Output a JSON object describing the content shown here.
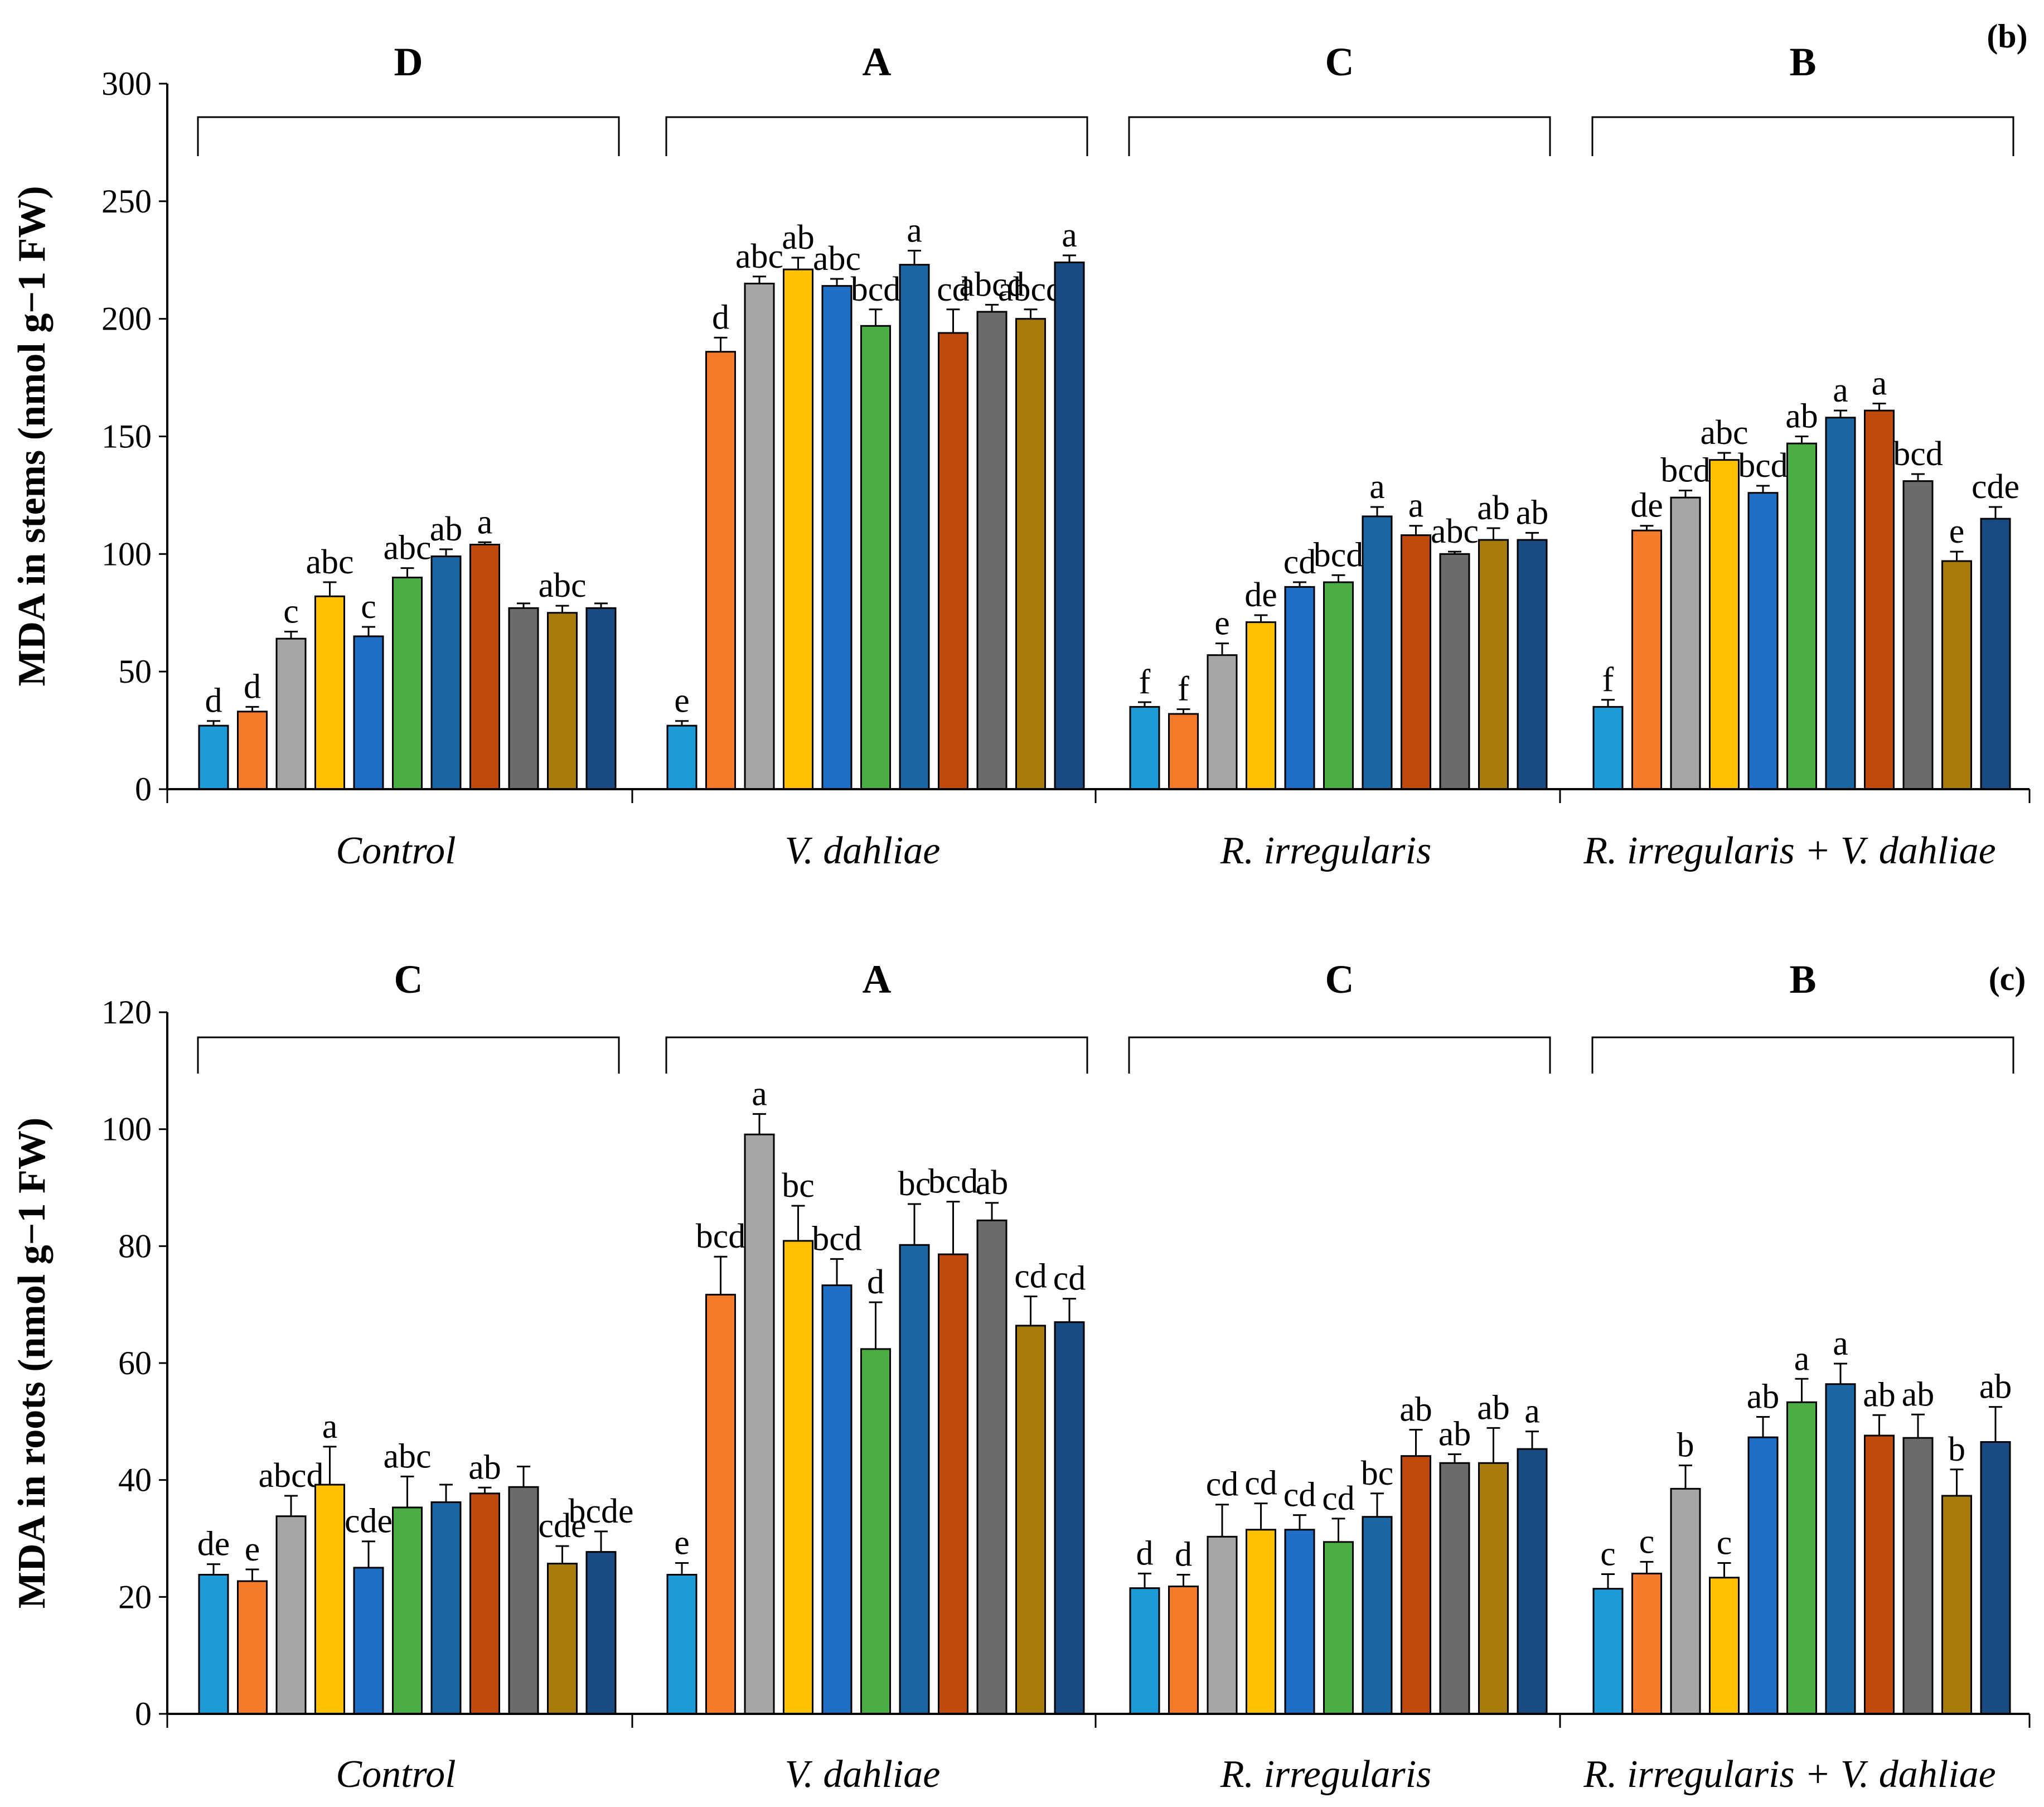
{
  "bar_colors": [
    "#1c9bd8",
    "#f57a2a",
    "#a6a6a6",
    "#ffc000",
    "#1f6fc6",
    "#4aae45",
    "#1a67a3",
    "#c04a0c",
    "#6b6b6b",
    "#a87c0c",
    "#1a4a82"
  ],
  "chart_data": [
    {
      "type": "bar",
      "panel_label": "(b)",
      "ylabel": "MDA in stems (nmol g−1 FW)",
      "ylim": [
        0,
        300
      ],
      "yticks": [
        0,
        50,
        100,
        150,
        200,
        250,
        300
      ],
      "categories": [
        "Control",
        "V. dahliae",
        "R. irregularis",
        "R. irregularis + V. dahliae"
      ],
      "group_letters": [
        "D",
        "A",
        "C",
        "B"
      ],
      "groups": [
        {
          "values": [
            27,
            33,
            64,
            82,
            65,
            90,
            99,
            104,
            77,
            75,
            77
          ],
          "errors": [
            2,
            2,
            3,
            6,
            4,
            4,
            3,
            1,
            2,
            3,
            2
          ],
          "letters": [
            "d",
            "d",
            "c",
            "abc",
            "c",
            "abc",
            "ab",
            "a",
            "",
            "abc",
            ""
          ]
        },
        {
          "values": [
            27,
            186,
            215,
            221,
            214,
            197,
            223,
            194,
            203,
            200,
            224
          ],
          "errors": [
            2,
            6,
            3,
            5,
            3,
            7,
            6,
            10,
            3,
            4,
            3
          ],
          "letters": [
            "e",
            "d",
            "abc",
            "ab",
            "abc",
            "bcd",
            "a",
            "cd",
            "abcd",
            "abcd",
            "a"
          ]
        },
        {
          "values": [
            35,
            32,
            57,
            71,
            86,
            88,
            116,
            108,
            100,
            106,
            106
          ],
          "errors": [
            2,
            2,
            5,
            3,
            2,
            3,
            4,
            4,
            1,
            5,
            3
          ],
          "letters": [
            "f",
            "f",
            "e",
            "de",
            "cd",
            "bcd",
            "a",
            "a",
            "abc",
            "ab",
            "ab"
          ]
        },
        {
          "values": [
            35,
            110,
            124,
            140,
            126,
            147,
            158,
            161,
            131,
            97,
            115
          ],
          "errors": [
            3,
            2,
            3,
            3,
            3,
            3,
            3,
            3,
            3,
            4,
            5
          ],
          "letters": [
            "f",
            "de",
            "bcd",
            "abc",
            "bcd",
            "ab",
            "a",
            "a",
            "bcd",
            "e",
            "cde"
          ]
        }
      ]
    },
    {
      "type": "bar",
      "panel_label": "(c)",
      "ylabel": "MDA in roots (nmol g−1 FW)",
      "ylim": [
        0,
        120
      ],
      "yticks": [
        0,
        20,
        40,
        60,
        80,
        100,
        120
      ],
      "categories": [
        "Control",
        "V. dahliae",
        "R. irregularis",
        "R. irregularis + V. dahliae"
      ],
      "group_letters": [
        "C",
        "A",
        "C",
        "B"
      ],
      "groups": [
        {
          "values": [
            23.8,
            22.7,
            33.8,
            39.2,
            25.0,
            35.3,
            36.2,
            37.7,
            38.8,
            25.7,
            27.7
          ],
          "errors": [
            1.8,
            2.0,
            3.5,
            6.5,
            4.5,
            5.3,
            3.0,
            1.0,
            3.5,
            3.0,
            3.5
          ],
          "letters": [
            "de",
            "e",
            "abcd",
            "a",
            "cde",
            "abc",
            "",
            "ab",
            "",
            "cde",
            "bcde"
          ]
        },
        {
          "values": [
            23.8,
            71.7,
            99.1,
            80.9,
            73.3,
            62.4,
            80.2,
            78.6,
            84.4,
            66.4,
            67.0
          ],
          "errors": [
            2.0,
            6.5,
            3.5,
            6.0,
            4.5,
            8.0,
            7.0,
            9.0,
            3.0,
            5.0,
            4.0
          ],
          "letters": [
            "e",
            "bcd",
            "a",
            "bc",
            "bcd",
            "d",
            "bc",
            "bcd",
            "ab",
            "cd",
            "cd"
          ]
        },
        {
          "values": [
            21.5,
            21.8,
            30.3,
            31.5,
            31.5,
            29.4,
            33.7,
            44.1,
            42.9,
            42.9,
            45.3
          ],
          "errors": [
            2.5,
            2.0,
            5.5,
            4.5,
            2.5,
            4.0,
            4.0,
            4.5,
            1.5,
            6.0,
            3.0
          ],
          "letters": [
            "d",
            "d",
            "cd",
            "cd",
            "cd",
            "cd",
            "bc",
            "ab",
            "ab",
            "ab",
            "a"
          ]
        },
        {
          "values": [
            21.4,
            24.0,
            38.5,
            23.3,
            47.3,
            53.3,
            56.4,
            47.6,
            47.2,
            37.3,
            46.5
          ],
          "errors": [
            2.5,
            2.0,
            4.0,
            2.5,
            3.5,
            4.0,
            3.5,
            3.5,
            4.0,
            4.5,
            6.0
          ],
          "letters": [
            "c",
            "c",
            "b",
            "c",
            "ab",
            "a",
            "a",
            "ab",
            "ab",
            "b",
            "ab"
          ]
        }
      ]
    }
  ]
}
